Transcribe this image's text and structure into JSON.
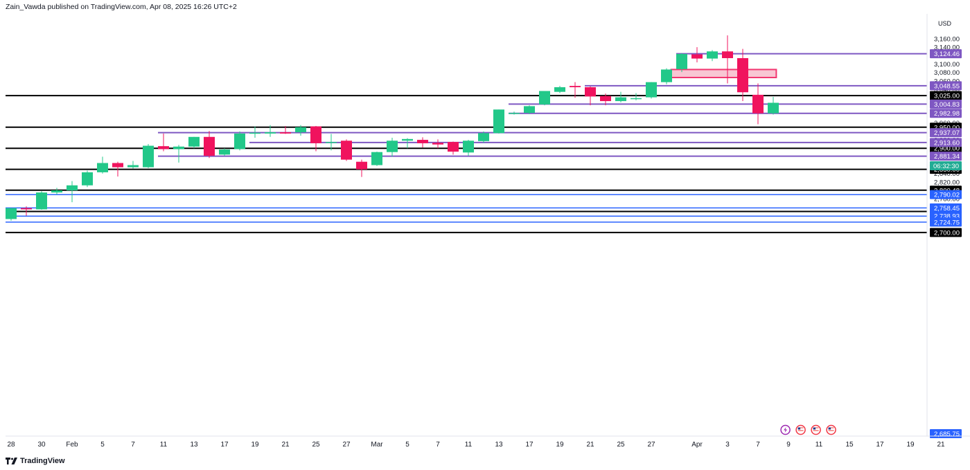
{
  "header": {
    "publisher": "Zain_Vawda published on TradingView.com,",
    "date": "Apr 08, 2025 16:26 UTC+2"
  },
  "footer": {
    "brand": "TradingView"
  },
  "chart_data": {
    "type": "candlestick",
    "currency": "USD",
    "ylim": [
      2685,
      3168
    ],
    "y_ticks": [
      2780,
      2820,
      2840,
      2860,
      2880,
      2920,
      2960,
      3040,
      3060,
      3080,
      3100,
      3140,
      3160
    ],
    "x_ticks": [
      {
        "label": "28",
        "i": 0
      },
      {
        "label": "30",
        "i": 2
      },
      {
        "label": "Feb",
        "i": 4
      },
      {
        "label": "5",
        "i": 6
      },
      {
        "label": "7",
        "i": 8
      },
      {
        "label": "11",
        "i": 10
      },
      {
        "label": "13",
        "i": 12
      },
      {
        "label": "17",
        "i": 14
      },
      {
        "label": "19",
        "i": 16
      },
      {
        "label": "21",
        "i": 18
      },
      {
        "label": "25",
        "i": 20
      },
      {
        "label": "27",
        "i": 22
      },
      {
        "label": "Mar",
        "i": 24
      },
      {
        "label": "5",
        "i": 26
      },
      {
        "label": "7",
        "i": 28
      },
      {
        "label": "11",
        "i": 30
      },
      {
        "label": "13",
        "i": 32
      },
      {
        "label": "17",
        "i": 34
      },
      {
        "label": "19",
        "i": 36
      },
      {
        "label": "21",
        "i": 38
      },
      {
        "label": "25",
        "i": 40
      },
      {
        "label": "27",
        "i": 42
      },
      {
        "label": "Apr",
        "i": 45
      },
      {
        "label": "3",
        "i": 47
      },
      {
        "label": "7",
        "i": 49
      },
      {
        "label": "9",
        "i": 51
      },
      {
        "label": "11",
        "i": 53
      },
      {
        "label": "15",
        "i": 55
      },
      {
        "label": "17",
        "i": 57
      },
      {
        "label": "19",
        "i": 59
      },
      {
        "label": "21",
        "i": 61
      }
    ],
    "candles": [
      {
        "o": 2732,
        "h": 2758,
        "l": 2728,
        "c": 2758
      },
      {
        "o": 2758,
        "h": 2762,
        "l": 2740,
        "c": 2755
      },
      {
        "o": 2755,
        "h": 2798,
        "l": 2754,
        "c": 2795
      },
      {
        "o": 2795,
        "h": 2806,
        "l": 2790,
        "c": 2800
      },
      {
        "o": 2800,
        "h": 2822,
        "l": 2772,
        "c": 2812
      },
      {
        "o": 2812,
        "h": 2847,
        "l": 2808,
        "c": 2843
      },
      {
        "o": 2843,
        "h": 2880,
        "l": 2840,
        "c": 2865
      },
      {
        "o": 2865,
        "h": 2868,
        "l": 2833,
        "c": 2855
      },
      {
        "o": 2855,
        "h": 2870,
        "l": 2852,
        "c": 2860
      },
      {
        "o": 2855,
        "h": 2910,
        "l": 2853,
        "c": 2906
      },
      {
        "o": 2905,
        "h": 2935,
        "l": 2893,
        "c": 2898
      },
      {
        "o": 2898,
        "h": 2908,
        "l": 2866,
        "c": 2904
      },
      {
        "o": 2904,
        "h": 2927,
        "l": 2900,
        "c": 2927
      },
      {
        "o": 2927,
        "h": 2941,
        "l": 2877,
        "c": 2882
      },
      {
        "o": 2885,
        "h": 2900,
        "l": 2882,
        "c": 2897
      },
      {
        "o": 2898,
        "h": 2940,
        "l": 2895,
        "c": 2935
      },
      {
        "o": 2935,
        "h": 2952,
        "l": 2925,
        "c": 2937
      },
      {
        "o": 2935,
        "h": 2955,
        "l": 2927,
        "c": 2938
      },
      {
        "o": 2938,
        "h": 2953,
        "l": 2934,
        "c": 2935
      },
      {
        "o": 2938,
        "h": 2955,
        "l": 2930,
        "c": 2950
      },
      {
        "o": 2952,
        "h": 2953,
        "l": 2893,
        "c": 2912
      },
      {
        "o": 2913,
        "h": 2934,
        "l": 2895,
        "c": 2915
      },
      {
        "o": 2918,
        "h": 2921,
        "l": 2870,
        "c": 2873
      },
      {
        "o": 2868,
        "h": 2873,
        "l": 2832,
        "c": 2850
      },
      {
        "o": 2860,
        "h": 2892,
        "l": 2858,
        "c": 2891
      },
      {
        "o": 2891,
        "h": 2925,
        "l": 2880,
        "c": 2918
      },
      {
        "o": 2918,
        "h": 2924,
        "l": 2900,
        "c": 2922
      },
      {
        "o": 2920,
        "h": 2926,
        "l": 2902,
        "c": 2912
      },
      {
        "o": 2913,
        "h": 2921,
        "l": 2900,
        "c": 2909
      },
      {
        "o": 2915,
        "h": 2916,
        "l": 2885,
        "c": 2892
      },
      {
        "o": 2890,
        "h": 2920,
        "l": 2882,
        "c": 2918
      },
      {
        "o": 2917,
        "h": 2940,
        "l": 2913,
        "c": 2936
      },
      {
        "o": 2936,
        "h": 2992,
        "l": 2935,
        "c": 2992
      },
      {
        "o": 2983,
        "h": 2987,
        "l": 2980,
        "c": 2984
      },
      {
        "o": 2984,
        "h": 3002,
        "l": 2981,
        "c": 3000
      },
      {
        "o": 3004,
        "h": 3036,
        "l": 3002,
        "c": 3036
      },
      {
        "o": 3034,
        "h": 3048,
        "l": 3031,
        "c": 3045
      },
      {
        "o": 3048,
        "h": 3057,
        "l": 3020,
        "c": 3045
      },
      {
        "o": 3045,
        "h": 3047,
        "l": 3002,
        "c": 3023
      },
      {
        "o": 3024,
        "h": 3030,
        "l": 3002,
        "c": 3012
      },
      {
        "o": 3012,
        "h": 3034,
        "l": 3009,
        "c": 3021
      },
      {
        "o": 3019,
        "h": 3031,
        "l": 3014,
        "c": 3019
      },
      {
        "o": 3021,
        "h": 3057,
        "l": 3018,
        "c": 3057
      },
      {
        "o": 3057,
        "h": 3090,
        "l": 3052,
        "c": 3087
      },
      {
        "o": 3088,
        "h": 3126,
        "l": 3081,
        "c": 3124
      },
      {
        "o": 3123,
        "h": 3140,
        "l": 3104,
        "c": 3113
      },
      {
        "o": 3113,
        "h": 3133,
        "l": 3107,
        "c": 3130
      },
      {
        "o": 3130,
        "h": 3168,
        "l": 3054,
        "c": 3114
      },
      {
        "o": 3114,
        "h": 3136,
        "l": 3012,
        "c": 3033
      },
      {
        "o": 3027,
        "h": 3054,
        "l": 2957,
        "c": 2983
      },
      {
        "o": 2983,
        "h": 3022,
        "l": 2980,
        "c": 3008
      }
    ],
    "horizontal_lines": [
      {
        "value": 3025.0,
        "label": "3,025.00",
        "color": "#000000",
        "start_i": 0
      },
      {
        "value": 2950.0,
        "label": "2,950.00",
        "color": "#000000",
        "start_i": 0
      },
      {
        "value": 2900.0,
        "label": "2,900.00",
        "color": "#000000",
        "start_i": 0
      },
      {
        "value": 2850.0,
        "label": "2,850.00",
        "color": "#000000",
        "start_i": 0
      },
      {
        "value": 2800.48,
        "label": "2,800.48",
        "color": "#000000",
        "start_i": 0
      },
      {
        "value": 2750.0,
        "label": "2,750.00",
        "color": "#000000",
        "start_i": 0
      },
      {
        "value": 2700.0,
        "label": "2,700.00",
        "color": "#000000",
        "start_i": 0
      },
      {
        "value": 3124.46,
        "label": "3,124.46",
        "color": "#7e57c2",
        "start_i": 44
      },
      {
        "value": 3048.55,
        "label": "3,048.55",
        "color": "#7e57c2",
        "start_i": 38
      },
      {
        "value": 3004.83,
        "label": "3,004.83",
        "color": "#7e57c2",
        "start_i": 33
      },
      {
        "value": 2982.98,
        "label": "2,982.98",
        "color": "#7e57c2",
        "start_i": 33
      },
      {
        "value": 2937.07,
        "label": "2,937.07",
        "color": "#7e57c2",
        "start_i": 10
      },
      {
        "value": 2913.6,
        "label": "2,913.60",
        "color": "#7e57c2",
        "start_i": 16
      },
      {
        "value": 2881.34,
        "label": "2,881.34",
        "color": "#7e57c2",
        "start_i": 10
      },
      {
        "value": 2790.02,
        "label": "2,790.02",
        "color": "#2962ff",
        "start_i": 0
      },
      {
        "value": 2758.45,
        "label": "2,758.45",
        "color": "#2962ff",
        "start_i": 0
      },
      {
        "value": 2738.93,
        "label": "2,738.93",
        "color": "#2962ff",
        "start_i": 0
      },
      {
        "value": 2724.75,
        "label": "2,724.75",
        "color": "#2962ff",
        "start_i": 0
      }
    ],
    "bottom_label": {
      "value": 2685.75,
      "label": "2,685.75",
      "color": "#2962ff"
    },
    "current_price": {
      "value": 3008.5,
      "countdown": "06:32:30",
      "color": "#22ab94"
    },
    "zone": {
      "start_i": 43.3,
      "end_i": 50.2,
      "top": 3087,
      "bottom": 3068,
      "fill": "#f8c6d3",
      "stroke": "#f23670"
    },
    "colors": {
      "up": "#22c889",
      "down": "#f0135e"
    },
    "event_markers": [
      {
        "i": 50.8,
        "icon": "lightning-icon",
        "color": "#9c27b0"
      },
      {
        "i": 51.8,
        "icon": "us-flag-icon",
        "color": "#f23645"
      },
      {
        "i": 52.8,
        "icon": "us-flag-icon",
        "color": "#f23645"
      },
      {
        "i": 53.8,
        "icon": "us-flag-icon",
        "color": "#f23645"
      }
    ]
  }
}
